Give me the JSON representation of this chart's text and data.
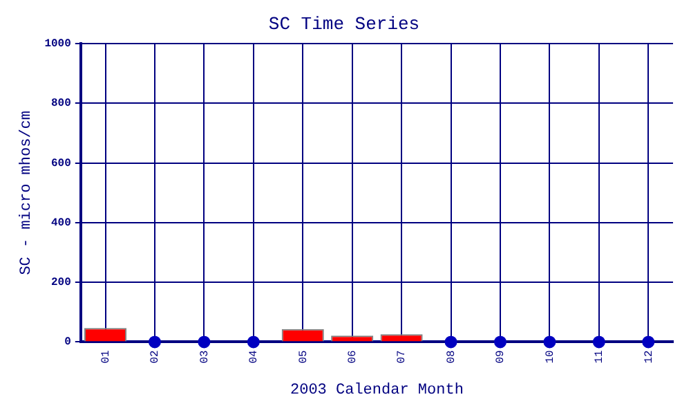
{
  "chart_data": {
    "type": "bar",
    "title": "SC Time Series",
    "xlabel": "2003 Calendar Month",
    "ylabel": "SC - micro mhos/cm",
    "categories": [
      "01",
      "02",
      "03",
      "04",
      "05",
      "06",
      "07",
      "08",
      "09",
      "10",
      "11",
      "12"
    ],
    "series": [
      {
        "color": "#ff0000",
        "values": [
          47,
          null,
          null,
          null,
          43,
          21,
          26,
          null,
          null,
          null,
          null,
          null
        ]
      },
      {
        "type": "scatter",
        "color": "#0000c0",
        "x": [
          "02",
          "03",
          "04",
          "08",
          "09",
          "10",
          "11",
          "12"
        ],
        "values": [
          0,
          0,
          0,
          0,
          0,
          0,
          0,
          0
        ],
        "marker": "circle"
      }
    ],
    "ylim": [
      0,
      1000
    ],
    "yticks": [
      0,
      200,
      400,
      600,
      800,
      1000
    ],
    "grid": true,
    "legend": false
  }
}
